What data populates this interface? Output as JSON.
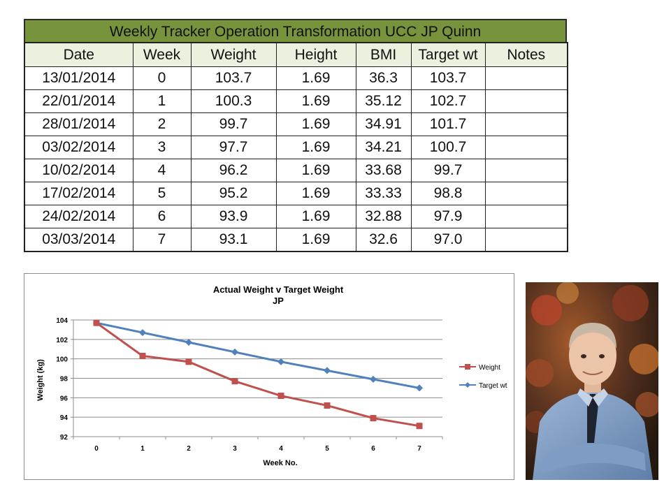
{
  "table": {
    "title": "Weekly Tracker Operation Transformation UCC JP Quinn",
    "columns": [
      "Date",
      "Week",
      "Weight",
      "Height",
      "BMI",
      "Target wt",
      "Notes"
    ],
    "rows": [
      [
        "13/01/2014",
        "0",
        "103.7",
        "1.69",
        "36.3",
        "103.7",
        ""
      ],
      [
        "22/01/2014",
        "1",
        "100.3",
        "1.69",
        "35.12",
        "102.7",
        ""
      ],
      [
        "28/01/2014",
        "2",
        "99.7",
        "1.69",
        "34.91",
        "101.7",
        ""
      ],
      [
        "03/02/2014",
        "3",
        "97.7",
        "1.69",
        "34.21",
        "100.7",
        ""
      ],
      [
        "10/02/2014",
        "4",
        "96.2",
        "1.69",
        "33.68",
        "99.7",
        ""
      ],
      [
        "17/02/2014",
        "5",
        "95.2",
        "1.69",
        "33.33",
        "98.8",
        ""
      ],
      [
        "24/02/2014",
        "6",
        "93.9",
        "1.69",
        "32.88",
        "97.9",
        ""
      ],
      [
        "03/03/2014",
        "7",
        "93.1",
        "1.69",
        "32.6",
        "97.0",
        ""
      ]
    ],
    "colors": {
      "title_bg": "#77933c",
      "header_bg": "#ebf1de"
    }
  },
  "chart_data": {
    "type": "line",
    "title": "Actual Weight v Target Weight",
    "subtitle": "JP",
    "xlabel": "Week No.",
    "ylabel": "Weight (kg)",
    "x": [
      0,
      1,
      2,
      3,
      4,
      5,
      6,
      7
    ],
    "ylim": [
      92,
      104
    ],
    "yticks": [
      92,
      94,
      96,
      98,
      100,
      102,
      104
    ],
    "grid": "horizontal",
    "legend_position": "right",
    "series": [
      {
        "name": "Weight",
        "values": [
          103.7,
          100.3,
          99.7,
          97.7,
          96.2,
          95.2,
          93.9,
          93.1
        ],
        "color": "#c0504d",
        "marker": "square"
      },
      {
        "name": "Target wt",
        "values": [
          103.7,
          102.7,
          101.7,
          100.7,
          99.7,
          98.8,
          97.9,
          97.0
        ],
        "color": "#4f81bd",
        "marker": "diamond"
      }
    ]
  },
  "photo": {
    "subject": "portrait-photo"
  }
}
